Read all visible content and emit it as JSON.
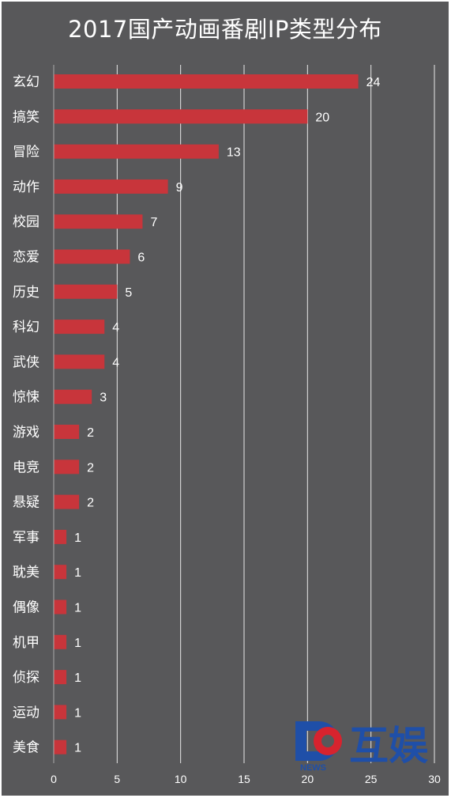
{
  "chart_data": {
    "type": "bar",
    "orientation": "horizontal",
    "title": "2017国产动画番剧IP类型分布",
    "categories": [
      "玄幻",
      "搞笑",
      "冒险",
      "动作",
      "校园",
      "恋爱",
      "历史",
      "科幻",
      "武侠",
      "惊悚",
      "游戏",
      "电竞",
      "悬疑",
      "军事",
      "耽美",
      "偶像",
      "机甲",
      "侦探",
      "运动",
      "美食"
    ],
    "values": [
      24,
      20,
      13,
      9,
      7,
      6,
      5,
      4,
      4,
      3,
      2,
      2,
      2,
      1,
      1,
      1,
      1,
      1,
      1,
      1
    ],
    "xlim": [
      0,
      30
    ],
    "xticks": [
      0,
      5,
      10,
      15,
      20,
      25,
      30
    ],
    "grid": true,
    "data_labels": true,
    "colors": {
      "background": "#58585a",
      "bar": "#c8353b",
      "text": "#ffffff",
      "grid": "#e8e8e8"
    }
  },
  "logo": {
    "name": "互娱",
    "sub": "NEWS",
    "colors": {
      "blue": "#1f4fa8",
      "red": "#d7232e"
    }
  }
}
